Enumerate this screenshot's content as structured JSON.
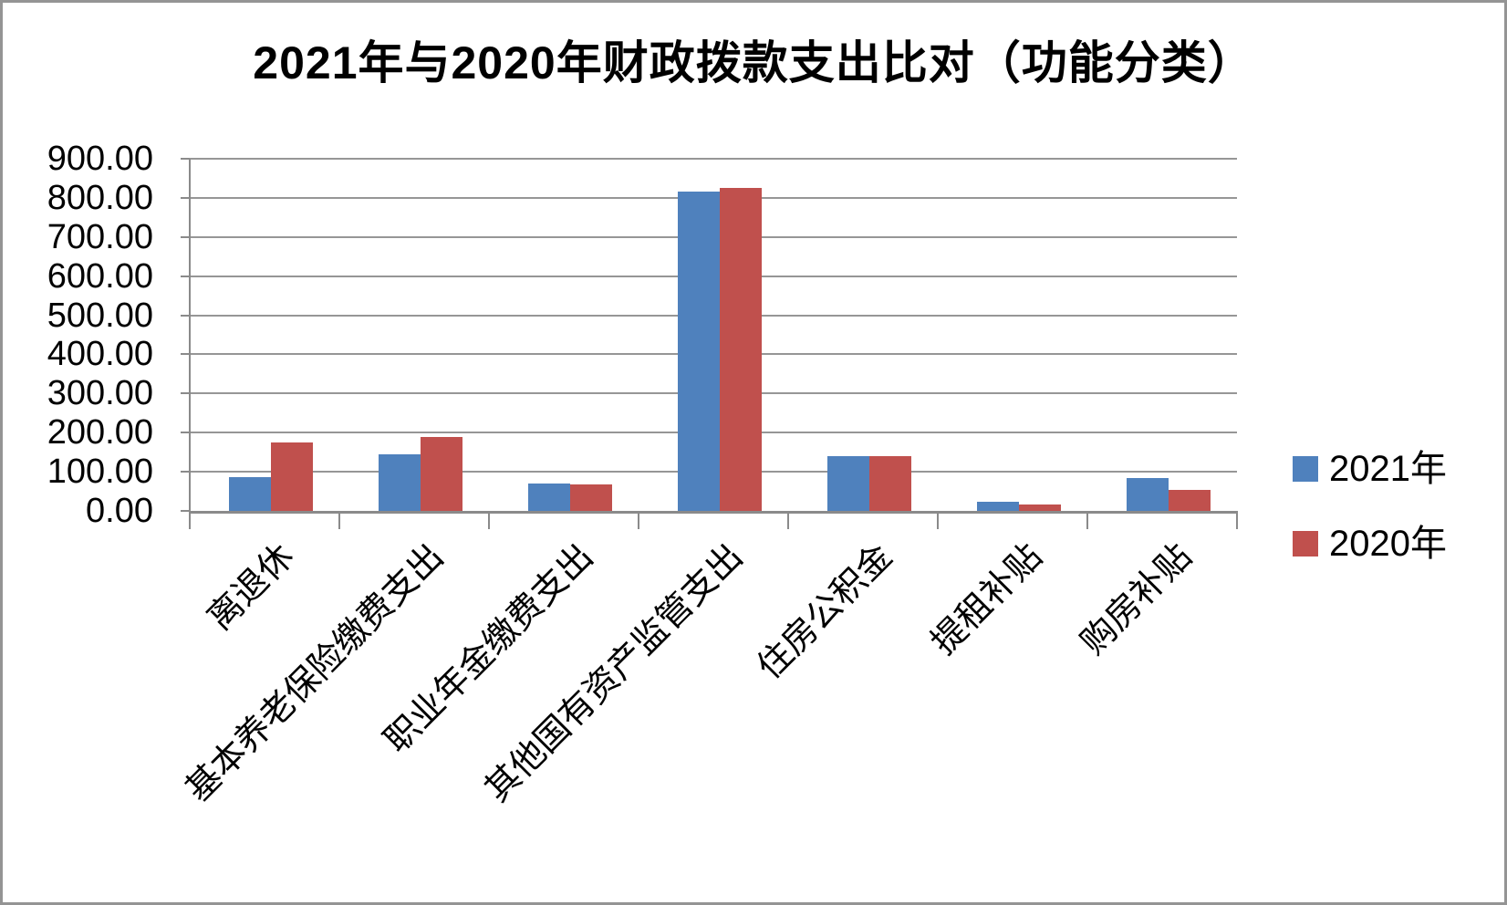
{
  "page": {
    "background": "#ffffff",
    "border_color": "#949494"
  },
  "chart_data": {
    "type": "bar",
    "title": "2021年与2020年财政拨款支出比对（功能分类）",
    "categories": [
      "离退休",
      "基本养老保险缴费支出",
      "职业年金缴费支出",
      "其他国有资产监管支出",
      "住房公积金",
      "提租补贴",
      "购房补贴"
    ],
    "series": [
      {
        "name": "2021年",
        "color": "#4F81BD",
        "values": [
          86,
          144,
          71,
          815,
          139,
          24,
          84
        ]
      },
      {
        "name": "2020年",
        "color": "#C0504D",
        "values": [
          175,
          189,
          68,
          825,
          139,
          17,
          54
        ]
      }
    ],
    "ylim": [
      0,
      900
    ],
    "ytick_step": 100,
    "ytick_labels": [
      "0.00",
      "100.00",
      "200.00",
      "300.00",
      "400.00",
      "500.00",
      "600.00",
      "700.00",
      "800.00",
      "900.00"
    ],
    "xlabel": "",
    "ylabel": "",
    "grid": true,
    "legend_position": "right",
    "gridline_color": "#969696",
    "axis_color": "#8a8a8a"
  }
}
